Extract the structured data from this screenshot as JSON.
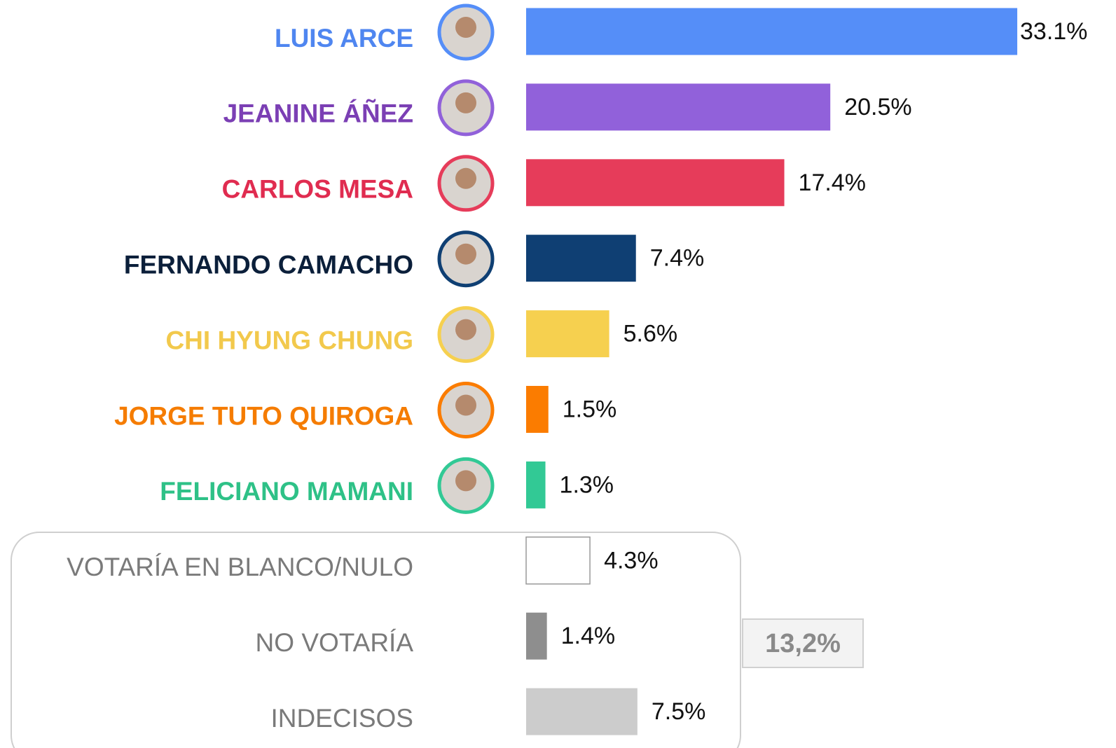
{
  "chart_data": {
    "type": "bar",
    "orientation": "horizontal",
    "categories": [
      "LUIS ARCE",
      "JEANINE ÁÑEZ",
      "CARLOS MESA",
      "FERNANDO CAMACHO",
      "CHI HYUNG CHUNG",
      "JORGE TUTO QUIROGA",
      "FELICIANO MAMANI",
      "VOTARÍA EN BLANCO/NULO",
      "NO VOTARÍA",
      "INDECISOS"
    ],
    "values": [
      33.1,
      20.5,
      17.4,
      7.4,
      5.6,
      1.5,
      1.3,
      4.3,
      1.4,
      7.5
    ],
    "value_labels": [
      "33.1%",
      "20.5%",
      "17.4%",
      "7.4%",
      "5.6%",
      "1.5%",
      "1.3%",
      "4.3%",
      "1.4%",
      "7.5%"
    ],
    "colors": [
      "#558ef8",
      "#9161da",
      "#e63c5a",
      "#0f3f73",
      "#f6d04f",
      "#fb7c00",
      "#32c995",
      "#ffffff",
      "#8e8e8e",
      "#cccccc"
    ],
    "label_colors": [
      "#4f86f0",
      "#7b3fb4",
      "#e02c50",
      "#0b1f3a",
      "#f2c94c",
      "#f57c00",
      "#2ec187",
      "#7a7a7a",
      "#7a7a7a",
      "#7a7a7a"
    ],
    "annotation": "13,2%"
  }
}
